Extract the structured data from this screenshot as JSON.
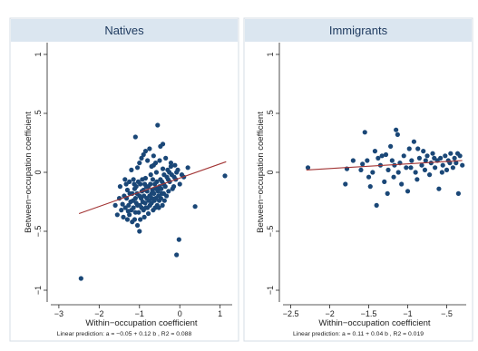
{
  "chart_data": [
    {
      "type": "scatter",
      "title": "Natives",
      "xlabel": "Within−occupation coefficient",
      "ylabel": "Between−occupation coefficient",
      "xlim": [
        -3.2,
        1.3
      ],
      "ylim": [
        -1.1,
        1.1
      ],
      "xticks": [
        -3,
        -2,
        -1,
        0,
        1
      ],
      "xtick_labels": [
        "−3",
        "−2",
        "−1",
        "0",
        "1"
      ],
      "yticks": [
        -1,
        -0.5,
        0,
        0.5,
        1
      ],
      "ytick_labels": [
        "−1",
        "−.5",
        "0",
        ".5",
        "1"
      ],
      "note": "Linear prediction: a = −0.05 + 0.12 b , R2 = 0.088",
      "fit": {
        "x": [
          -2.5,
          1.15
        ],
        "y": [
          -0.35,
          0.09
        ]
      },
      "points": [
        [
          -2.45,
          -0.9
        ],
        [
          1.12,
          -0.03
        ],
        [
          -0.55,
          0.4
        ],
        [
          -0.42,
          0.24
        ],
        [
          -0.48,
          0.22
        ],
        [
          -1.1,
          0.3
        ],
        [
          -0.02,
          -0.57
        ],
        [
          -0.08,
          -0.7
        ],
        [
          0.38,
          -0.29
        ],
        [
          -0.22,
          0.05
        ],
        [
          0.2,
          0.04
        ],
        [
          0.1,
          -0.04
        ],
        [
          -1.0,
          -0.5
        ],
        [
          -1.5,
          -0.22
        ],
        [
          -1.42,
          -0.27
        ],
        [
          -1.4,
          -0.38
        ],
        [
          -1.35,
          -0.3
        ],
        [
          -1.28,
          -0.33
        ],
        [
          -1.22,
          -0.25
        ],
        [
          -1.18,
          -0.18
        ],
        [
          -1.15,
          -0.3
        ],
        [
          -1.12,
          -0.4
        ],
        [
          -1.1,
          -0.22
        ],
        [
          -1.08,
          -0.12
        ],
        [
          -1.05,
          -0.28
        ],
        [
          -1.02,
          -0.34
        ],
        [
          -1.0,
          -0.2
        ],
        [
          -0.98,
          -0.1
        ],
        [
          -0.95,
          -0.3
        ],
        [
          -0.92,
          -0.25
        ],
        [
          -0.9,
          -0.15
        ],
        [
          -0.88,
          -0.38
        ],
        [
          -0.85,
          -0.05
        ],
        [
          -0.82,
          -0.22
        ],
        [
          -0.8,
          -0.3
        ],
        [
          -0.78,
          -0.12
        ],
        [
          -0.75,
          -0.2
        ],
        [
          -0.72,
          -0.02
        ],
        [
          -0.7,
          -0.26
        ],
        [
          -0.68,
          -0.15
        ],
        [
          -0.65,
          0.06
        ],
        [
          -0.62,
          -0.1
        ],
        [
          -0.6,
          -0.22
        ],
        [
          -0.58,
          0.0
        ],
        [
          -0.55,
          -0.14
        ],
        [
          -0.52,
          -0.3
        ],
        [
          -0.5,
          0.1
        ],
        [
          -0.48,
          -0.06
        ],
        [
          -0.45,
          -0.18
        ],
        [
          -0.42,
          0.03
        ],
        [
          -0.4,
          -0.1
        ],
        [
          -0.38,
          -0.24
        ],
        [
          -0.35,
          0.12
        ],
        [
          -0.32,
          -0.04
        ],
        [
          -0.3,
          0.02
        ],
        [
          -0.28,
          -0.16
        ],
        [
          -0.25,
          -0.08
        ],
        [
          -0.22,
          0.08
        ],
        [
          -0.2,
          -0.02
        ],
        [
          -0.15,
          -0.12
        ],
        [
          -0.12,
          0.06
        ],
        [
          -0.1,
          -0.06
        ],
        [
          -0.05,
          0.02
        ],
        [
          0.0,
          -0.1
        ],
        [
          0.05,
          -0.02
        ],
        [
          -1.25,
          -0.08
        ],
        [
          -1.2,
          0.02
        ],
        [
          -1.15,
          -0.06
        ],
        [
          -1.05,
          0.04
        ],
        [
          -1.0,
          0.08
        ],
        [
          -0.95,
          0.12
        ],
        [
          -0.9,
          0.15
        ],
        [
          -0.85,
          0.18
        ],
        [
          -0.8,
          0.1
        ],
        [
          -0.75,
          0.2
        ],
        [
          -0.7,
          0.05
        ],
        [
          -0.65,
          0.14
        ],
        [
          -0.6,
          0.08
        ],
        [
          -1.3,
          -0.15
        ],
        [
          -1.32,
          -0.22
        ],
        [
          -1.25,
          -0.36
        ],
        [
          -1.18,
          -0.42
        ],
        [
          -1.12,
          -0.14
        ],
        [
          -1.08,
          -0.26
        ],
        [
          -1.05,
          -0.45
        ],
        [
          -0.98,
          -0.4
        ],
        [
          -0.94,
          -0.16
        ],
        [
          -0.9,
          -0.32
        ],
        [
          -0.86,
          -0.26
        ],
        [
          -0.83,
          -0.12
        ],
        [
          -0.78,
          -0.35
        ],
        [
          -0.74,
          -0.28
        ],
        [
          -0.7,
          -0.18
        ],
        [
          -0.66,
          -0.32
        ],
        [
          -0.63,
          -0.24
        ],
        [
          -0.6,
          -0.14
        ],
        [
          -0.56,
          -0.28
        ],
        [
          -0.53,
          -0.2
        ],
        [
          -0.5,
          -0.12
        ],
        [
          -0.47,
          -0.22
        ],
        [
          -0.44,
          -0.08
        ],
        [
          -0.4,
          -0.18
        ],
        [
          -1.45,
          -0.32
        ],
        [
          -1.38,
          -0.2
        ],
        [
          -1.33,
          -0.1
        ],
        [
          -1.27,
          -0.28
        ],
        [
          -1.2,
          -0.32
        ],
        [
          -1.16,
          -0.24
        ],
        [
          -1.13,
          -0.1
        ],
        [
          -1.1,
          -0.34
        ],
        [
          -1.06,
          -0.18
        ],
        [
          -1.03,
          -0.08
        ],
        [
          -0.99,
          -0.28
        ],
        [
          -0.96,
          -0.22
        ],
        [
          -0.93,
          -0.06
        ],
        [
          -0.89,
          -0.2
        ],
        [
          -0.87,
          -0.1
        ],
        [
          -0.84,
          -0.3
        ],
        [
          -0.81,
          -0.16
        ],
        [
          -0.77,
          -0.24
        ],
        [
          -0.73,
          -0.1
        ],
        [
          -0.69,
          -0.22
        ],
        [
          -0.67,
          -0.06
        ],
        [
          -0.64,
          -0.18
        ],
        [
          -0.61,
          -0.3
        ],
        [
          -0.57,
          -0.08
        ],
        [
          -0.54,
          -0.16
        ],
        [
          -0.51,
          -0.24
        ],
        [
          -0.46,
          -0.14
        ],
        [
          -0.43,
          -0.28
        ],
        [
          -0.39,
          -0.02
        ],
        [
          -0.36,
          -0.12
        ],
        [
          -0.33,
          -0.2
        ],
        [
          -0.29,
          -0.06
        ],
        [
          -0.26,
          0.0
        ],
        [
          -0.18,
          -0.14
        ],
        [
          -0.14,
          -0.04
        ],
        [
          -0.08,
          0.0
        ],
        [
          -1.6,
          -0.28
        ],
        [
          -1.55,
          -0.36
        ],
        [
          -1.48,
          -0.12
        ],
        [
          -1.36,
          -0.06
        ],
        [
          -1.3,
          -0.4
        ],
        [
          -1.24,
          -0.18
        ]
      ]
    },
    {
      "type": "scatter",
      "title": "Immigrants",
      "xlabel": "Within−occupation coefficient",
      "ylabel": "Between−occupation coefficient",
      "xlim": [
        -2.6,
        -0.25
      ],
      "ylim": [
        -1.1,
        1.1
      ],
      "xticks": [
        -2.5,
        -2,
        -1.5,
        -1,
        -0.5
      ],
      "xtick_labels": [
        "−2.5",
        "−2",
        "−1.5",
        "−1",
        "−.5"
      ],
      "yticks": [
        -1,
        -0.5,
        0,
        0.5,
        1
      ],
      "ytick_labels": [
        "−1",
        "−.5",
        "0",
        ".5",
        "1"
      ],
      "note": "Linear prediction: a = 0.11 + 0.04 b , R2 = 0.019",
      "fit": {
        "x": [
          -2.3,
          -0.3
        ],
        "y": [
          0.02,
          0.1
        ]
      },
      "points": [
        [
          -2.28,
          0.04
        ],
        [
          -1.8,
          -0.1
        ],
        [
          -1.78,
          0.03
        ],
        [
          -1.7,
          0.1
        ],
        [
          -1.55,
          0.34
        ],
        [
          -1.58,
          0.07
        ],
        [
          -1.5,
          -0.04
        ],
        [
          -1.48,
          -0.12
        ],
        [
          -1.45,
          0.0
        ],
        [
          -1.42,
          0.18
        ],
        [
          -1.4,
          -0.28
        ],
        [
          -1.38,
          0.12
        ],
        [
          -1.35,
          0.06
        ],
        [
          -1.3,
          -0.08
        ],
        [
          -1.28,
          0.15
        ],
        [
          -1.25,
          0.02
        ],
        [
          -1.22,
          0.22
        ],
        [
          -1.2,
          0.1
        ],
        [
          -1.18,
          -0.04
        ],
        [
          -1.15,
          0.36
        ],
        [
          -1.13,
          0.32
        ],
        [
          -1.1,
          0.08
        ],
        [
          -1.08,
          -0.1
        ],
        [
          -1.05,
          0.14
        ],
        [
          -1.02,
          0.04
        ],
        [
          -1.0,
          -0.16
        ],
        [
          -0.98,
          0.2
        ],
        [
          -0.95,
          0.1
        ],
        [
          -0.92,
          0.26
        ],
        [
          -0.9,
          0.0
        ],
        [
          -0.88,
          -0.06
        ],
        [
          -0.85,
          0.12
        ],
        [
          -0.82,
          0.06
        ],
        [
          -0.8,
          0.18
        ],
        [
          -0.78,
          0.02
        ],
        [
          -0.75,
          0.14
        ],
        [
          -0.72,
          -0.02
        ],
        [
          -0.7,
          0.08
        ],
        [
          -0.68,
          0.16
        ],
        [
          -0.65,
          0.04
        ],
        [
          -0.62,
          0.1
        ],
        [
          -0.6,
          -0.14
        ],
        [
          -0.58,
          0.12
        ],
        [
          -0.55,
          0.06
        ],
        [
          -0.52,
          0.14
        ],
        [
          -0.5,
          0.02
        ],
        [
          -0.48,
          0.1
        ],
        [
          -0.45,
          0.16
        ],
        [
          -0.42,
          0.04
        ],
        [
          -0.4,
          0.12
        ],
        [
          -0.38,
          0.08
        ],
        [
          -0.35,
          -0.18
        ],
        [
          -0.33,
          0.14
        ],
        [
          -0.3,
          0.06
        ],
        [
          -1.6,
          0.02
        ],
        [
          -1.52,
          0.1
        ],
        [
          -1.33,
          0.14
        ],
        [
          -1.12,
          0.0
        ],
        [
          -0.96,
          0.04
        ],
        [
          -0.87,
          0.2
        ],
        [
          -0.77,
          0.1
        ],
        [
          -0.66,
          0.12
        ],
        [
          -0.56,
          0.0
        ],
        [
          -0.46,
          0.08
        ],
        [
          -0.36,
          0.16
        ],
        [
          -1.26,
          -0.18
        ],
        [
          -1.17,
          0.06
        ]
      ]
    }
  ]
}
